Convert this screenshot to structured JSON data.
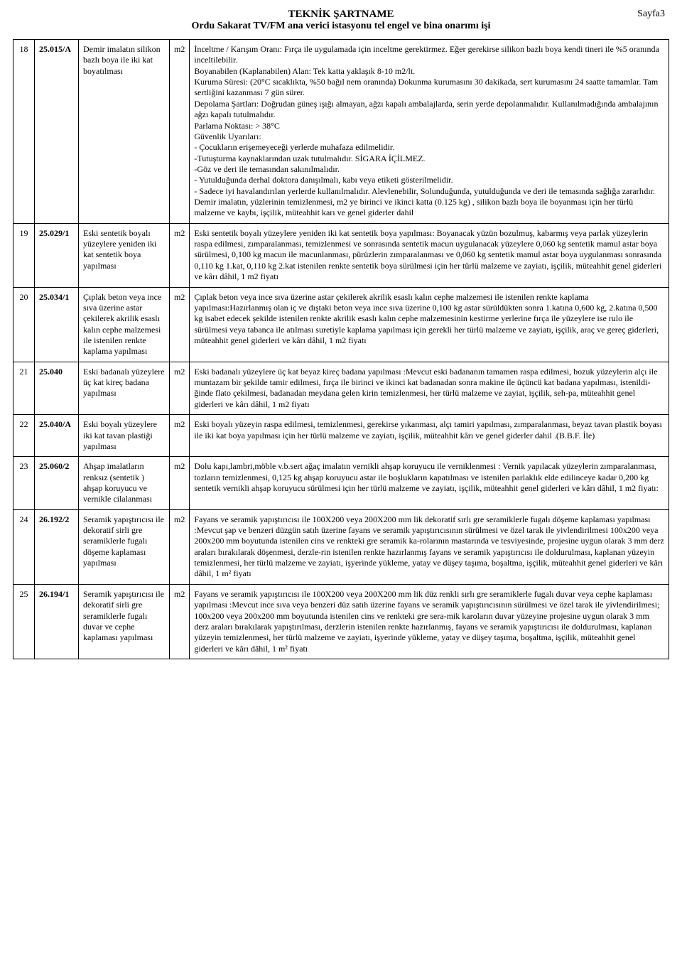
{
  "header": {
    "title1": "TEKNİK ŞARTNAME",
    "pagenum": "Sayfa3",
    "title2": "Ordu Sakarat TV/FM ana verici istasyonu tel engel ve bina onarımı işi"
  },
  "rows": [
    {
      "num": "18",
      "code": "25.015/A",
      "name": "Demir imalatın silikon bazlı boya ile iki kat boyatılması",
      "unit": "m2",
      "desc": "İnceltme / Karışım Oranı: Fırça ile uygulamada için inceltme gerektirmez. Eğer gerekirse silikon bazlı boya kendi tineri ile %5 oranında inceltilebilir.\nBoyanabilen (Kaplanabilen) Alan: Tek katta yaklaşık 8-10 m2/lt.\nKuruma Süresi: (20°C sıcaklıkta, %50 bağıl nem oranında) Dokunma kurumasını 30 dakikada, sert kurumasını 24 saatte tamamlar. Tam sertliğini kazanması 7 gün sürer.\nDepolama Şartları: Doğrudan güneş ışığı almayan, ağzı kapalı ambalajlarda, serin yerde depolanmalıdır. Kullanılmadığında ambalajının ağzı kapalı tutulmalıdır.\nParlama Noktası: > 38°C\nGüvenlik Uyarıları:\n- Çocukların erişemeyeceği yerlerde muhafaza edilmelidir.\n-Tutuşturma kaynaklarından uzak tutulmalıdır. SİGARA İÇİLMEZ.\n-Göz ve deri ile temasından sakınılmalıdır.\n- Yutulduğunda derhal doktora danışılmalı, kabı veya etiketi gösterilmelidir.\n- Sadece iyi havalandırılan yerlerde kullanılmalıdır. Alevlenebilir, Solunduğunda, yutulduğunda ve deri ile temasında sağlığa zararlıdır.\nDemir imalatın, yüzlerinin temizlenmesi, m2 ye birinci ve ikinci katta  (0.125 kg) ,  silikon bazlı boya ile boyanması için her türlü malzeme ve kaybı, işçilik, müteahhit karı ve genel giderler dahil"
    },
    {
      "num": "19",
      "code": "25.029/1",
      "name": "Eski sentetik boyalı yüzeylere yeniden iki kat sentetik boya yapılması",
      "unit": "m2",
      "desc": "Eski sentetik boyalı yüzeylere yeniden iki kat sentetik boya yapılması: Boyanacak yüzün bozulmuş, kabarmış veya parlak yüzeylerin raspa edilmesi, zımparalanması, temizlenmesi ve sonrasında sentetik macun uygulanacak yüzeylere 0,060 kg sentetik mamul astar boya sürülmesi, 0,100 kg macun ile macunlanması, pürüzlerin zımparalanması ve 0,060 kg sentetik mamul astar boya uygulanması sonrasında 0,110 kg 1.kat, 0,110 kg 2.kat istenilen renkte sentetik boya sürülmesi için her türlü malzeme ve zayiatı, işçilik, müteahhit genel giderleri ve kârı dâhil, 1 m2 fiyatı"
    },
    {
      "num": "20",
      "code": "25.034/1",
      "name": "Çıplak beton veya ince sıva üzerine astar çekilerek akrilik esaslı kalın cephe malzemesi ile istenilen renkte kaplama yapılması",
      "unit": "m2",
      "desc": "Çıplak beton veya ince sıva üzerine astar çekilerek akrilik esaslı kalın cephe malzemesi ile istenilen renkte kaplama yapılması:Hazırlanmış olan iç ve dıştaki beton veya ince sıva üzerine 0,100 kg astar sürüldükten sonra 1.katına 0,600 kg, 2.katına 0,500 kg isabet edecek şekilde istenilen renkte akrilik esaslı kalın cephe malzemesinin kestirme yerlerine fırça ile yüzeylere ise rulo ile sürülmesi veya tabanca ile atılması suretiyle kaplama yapılması için gerekli her türlü malzeme ve zayiatı, işçilik, araç ve gereç giderleri, müteahhit genel giderleri ve kârı dâhil, 1 m2 fiyatı"
    },
    {
      "num": "21",
      "code": "25.040",
      "name": "Eski badanalı yüzeylere üç kat kireç badana yapılması",
      "unit": "m2",
      "desc": "Eski badanalı yüzeylere üç kat beyaz kireç badana yapılması :Mevcut eski badananın tamamen raspa edilmesi, bozuk yüzeylerin alçı ile muntazam bir şekilde tamir edilmesi, fırça ile birinci ve ikinci kat badanadan sonra makine ile üçüncü kat badana yapılması, istenildi-ğinde flato çekilmesi, badanadan meydana gelen kirin temizlenmesi, her türlü malzeme ve zayiat, işçilik, seh-pa, müteahhit genel giderleri ve kârı dâhil, 1 m2 fiyatı"
    },
    {
      "num": "22",
      "code": "25.040/A",
      "name": "Eski  boyalı  yüzeylere  iki kat tavan plastiği yapılması",
      "unit": "m2",
      "desc": "Eski boyalı yüzeyin raspa edilmesi, temizlenmesi, gerekirse yıkanması, alçı tamiri yapılması, zımparalanması,  beyaz tavan plastik boyası ile iki  kat boya yapılması için her türlü malzeme ve zayiatı, işçilik, müteahhit kârı ve genel giderler dahil .(B.B.F. İle)"
    },
    {
      "num": "23",
      "code": "25.060/2",
      "name": "Ahşap imalatların renksız (sentetik ) ahşap koruyucu ve vernikle cilalanması",
      "unit": "m2",
      "desc": "Dolu kapı,lambri,möble v.b.sert ağaç imalatın vernikli ahşap koruyucu ile  verniklenmesi : Vernik yapılacak yüzeylerin zımparalanması, tozların temizlenmesi, 0,125 kg ahşap koruyucu astar ile boşlukların kapatılması ve istenilen parlaklık elde edilinceye kadar 0,200 kg sentetik vernikli ahşap koruyucu sürülmesi için her türlü malzeme ve zayiatı, işçilik, müteahhit genel giderleri ve kârı dâhil, 1 m2 fiyatı:"
    },
    {
      "num": "24",
      "code": "26.192/2",
      "name": "Seramik yapıştırıcısı ile dekoratif sirli gre seramiklerle fugalı döşeme kaplaması yapılması",
      "unit": "m2",
      "desc": "Fayans ve seramik yapıştırıcısı ile 100X200 veya 200X200 mm lik dekoratif sırlı gre seramiklerle fugalı döşeme kaplaması yapılması :Mevcut şap ve benzeri düzgün satıh üzerine fayans ve seramik yapıştırıcısının sürülmesi ve özel tarak ile yivlendirilmesi 100x200 veya 200x200 mm boyutunda istenilen cins ve renkteki gre seramik ka-rolarının mastarında ve tesviyesinde, projesine uygun olarak 3 mm derz araları bırakılarak döşenmesi, derzle-rin istenilen renkte hazırlanmış fayans ve seramik yapıştırıcısı ile doldurulması, kaplanan yüzeyin temizlenmesi, her türlü malzeme ve zayiatı, işyerinde yükleme, yatay ve düşey taşıma, boşaltma, işçilik, müteahhit genel giderleri ve kârı dâhil, 1 m² fiyatı"
    },
    {
      "num": "25",
      "code": "26.194/1",
      "name": "Seramik yapıştırıcısı ile dekoratif sirli gre seramiklerle fugalı duvar ve cephe kaplaması yapılması",
      "unit": "m2",
      "desc": "Fayans ve seramik yapıştırıcısı ile 100X200 veya 200X200 mm lik düz renkli sırlı gre seramiklerle fugalı duvar veya cephe kaplaması yapılması :Mevcut ince sıva veya benzeri düz satıh üzerine fayans ve seramik yapıştırıcısının sürülmesi ve özel tarak ile yivlendirilmesi; 100x200 veya 200x200 mm boyutunda istenilen cins ve renkteki gre sera-mik karoların duvar yüzeyine projesine uygun olarak 3 mm derz araları bırakılarak yapıştırılması, derzlerin istenilen renkte hazırlanmış, fayans ve seramik yapıştırıcısı ile doldurulması, kaplanan yüzeyin temizlenmesi, her türlü malzeme ve zayiatı, işyerinde yükleme, yatay ve düşey taşıma, boşaltma, işçilik, müteahhit genel giderleri ve kârı dâhil, 1 m² fiyatı"
    }
  ]
}
